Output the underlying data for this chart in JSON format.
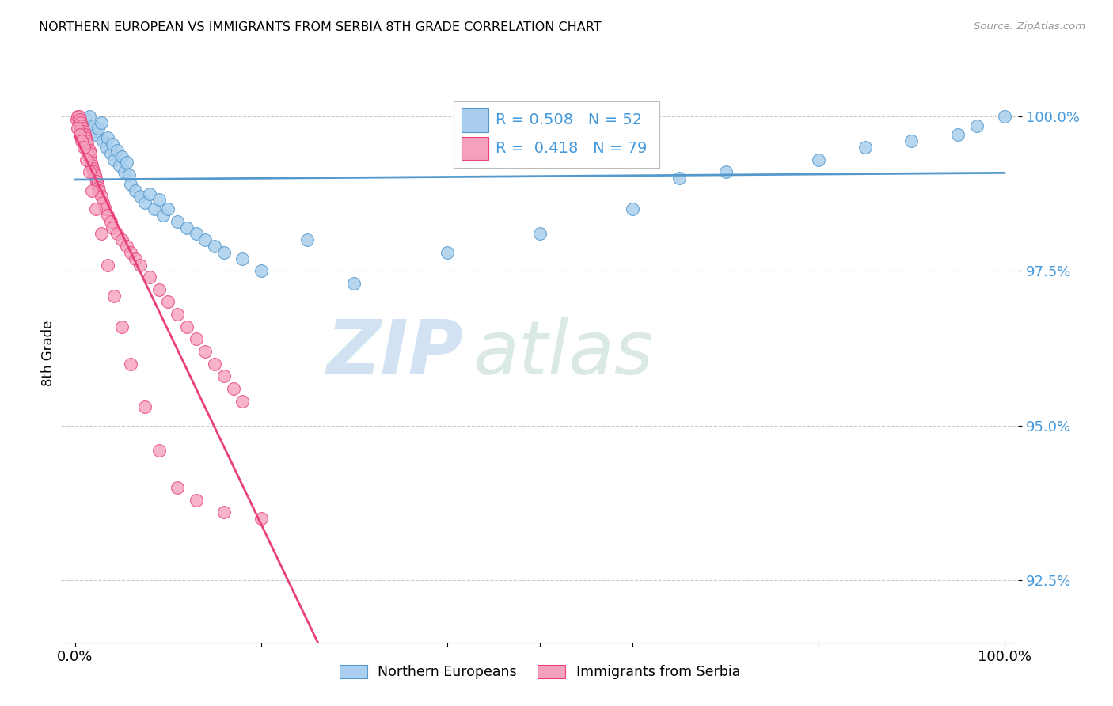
{
  "title": "NORTHERN EUROPEAN VS IMMIGRANTS FROM SERBIA 8TH GRADE CORRELATION CHART",
  "source": "Source: ZipAtlas.com",
  "ylabel": "8th Grade",
  "y_ticks": [
    92.5,
    95.0,
    97.5,
    100.0
  ],
  "xlim": [
    0.0,
    1.0
  ],
  "ylim": [
    91.5,
    100.8
  ],
  "legend1_label": "Northern Europeans",
  "legend2_label": "Immigrants from Serbia",
  "R_blue": 0.508,
  "N_blue": 52,
  "R_pink": 0.418,
  "N_pink": 79,
  "blue_color": "#aacfee",
  "pink_color": "#f5a0bc",
  "blue_edge_color": "#5599cc",
  "pink_edge_color": "#e8407a",
  "blue_line_color": "#5599cc",
  "pink_line_color": "#e8407a",
  "tick_color": "#4499dd",
  "grid_color": "#cccccc",
  "watermark_color": "#ddeeff",
  "blue_x": [
    0.005,
    0.008,
    0.01,
    0.012,
    0.015,
    0.018,
    0.02,
    0.022,
    0.025,
    0.028,
    0.03,
    0.033,
    0.035,
    0.038,
    0.04,
    0.042,
    0.045,
    0.048,
    0.05,
    0.053,
    0.055,
    0.058,
    0.06,
    0.065,
    0.07,
    0.075,
    0.08,
    0.085,
    0.09,
    0.095,
    0.1,
    0.11,
    0.12,
    0.13,
    0.14,
    0.15,
    0.16,
    0.18,
    0.2,
    0.25,
    0.3,
    0.4,
    0.5,
    0.6,
    0.65,
    0.7,
    0.8,
    0.85,
    0.9,
    0.95,
    0.97,
    1.0
  ],
  "blue_y": [
    99.85,
    99.9,
    99.8,
    99.95,
    100.0,
    99.75,
    99.85,
    99.7,
    99.8,
    99.9,
    99.6,
    99.5,
    99.65,
    99.4,
    99.55,
    99.3,
    99.45,
    99.2,
    99.35,
    99.1,
    99.25,
    99.05,
    98.9,
    98.8,
    98.7,
    98.6,
    98.75,
    98.5,
    98.65,
    98.4,
    98.5,
    98.3,
    98.2,
    98.1,
    98.0,
    97.9,
    97.8,
    97.7,
    97.5,
    98.0,
    97.3,
    97.8,
    98.1,
    98.5,
    99.0,
    99.1,
    99.3,
    99.5,
    99.6,
    99.7,
    99.85,
    100.0
  ],
  "pink_x": [
    0.002,
    0.003,
    0.004,
    0.004,
    0.005,
    0.005,
    0.006,
    0.006,
    0.007,
    0.007,
    0.008,
    0.008,
    0.009,
    0.009,
    0.01,
    0.01,
    0.011,
    0.011,
    0.012,
    0.012,
    0.013,
    0.013,
    0.014,
    0.015,
    0.015,
    0.016,
    0.016,
    0.017,
    0.018,
    0.019,
    0.02,
    0.021,
    0.022,
    0.023,
    0.024,
    0.025,
    0.026,
    0.028,
    0.03,
    0.032,
    0.035,
    0.038,
    0.04,
    0.045,
    0.05,
    0.055,
    0.06,
    0.065,
    0.07,
    0.08,
    0.09,
    0.1,
    0.11,
    0.12,
    0.13,
    0.14,
    0.15,
    0.16,
    0.17,
    0.18,
    0.003,
    0.005,
    0.007,
    0.009,
    0.012,
    0.015,
    0.018,
    0.022,
    0.028,
    0.035,
    0.042,
    0.05,
    0.06,
    0.075,
    0.09,
    0.11,
    0.13,
    0.16,
    0.2
  ],
  "pink_y": [
    99.95,
    100.0,
    99.9,
    100.0,
    99.85,
    99.95,
    99.8,
    99.9,
    99.75,
    99.85,
    99.7,
    99.8,
    99.65,
    99.75,
    99.6,
    99.7,
    99.55,
    99.65,
    99.5,
    99.6,
    99.45,
    99.55,
    99.4,
    99.35,
    99.45,
    99.3,
    99.4,
    99.25,
    99.2,
    99.15,
    99.1,
    99.05,
    99.0,
    98.95,
    98.9,
    98.85,
    98.8,
    98.7,
    98.6,
    98.5,
    98.4,
    98.3,
    98.2,
    98.1,
    98.0,
    97.9,
    97.8,
    97.7,
    97.6,
    97.4,
    97.2,
    97.0,
    96.8,
    96.6,
    96.4,
    96.2,
    96.0,
    95.8,
    95.6,
    95.4,
    99.8,
    99.7,
    99.6,
    99.5,
    99.3,
    99.1,
    98.8,
    98.5,
    98.1,
    97.6,
    97.1,
    96.6,
    96.0,
    95.3,
    94.6,
    94.0,
    93.8,
    93.6,
    93.5
  ]
}
